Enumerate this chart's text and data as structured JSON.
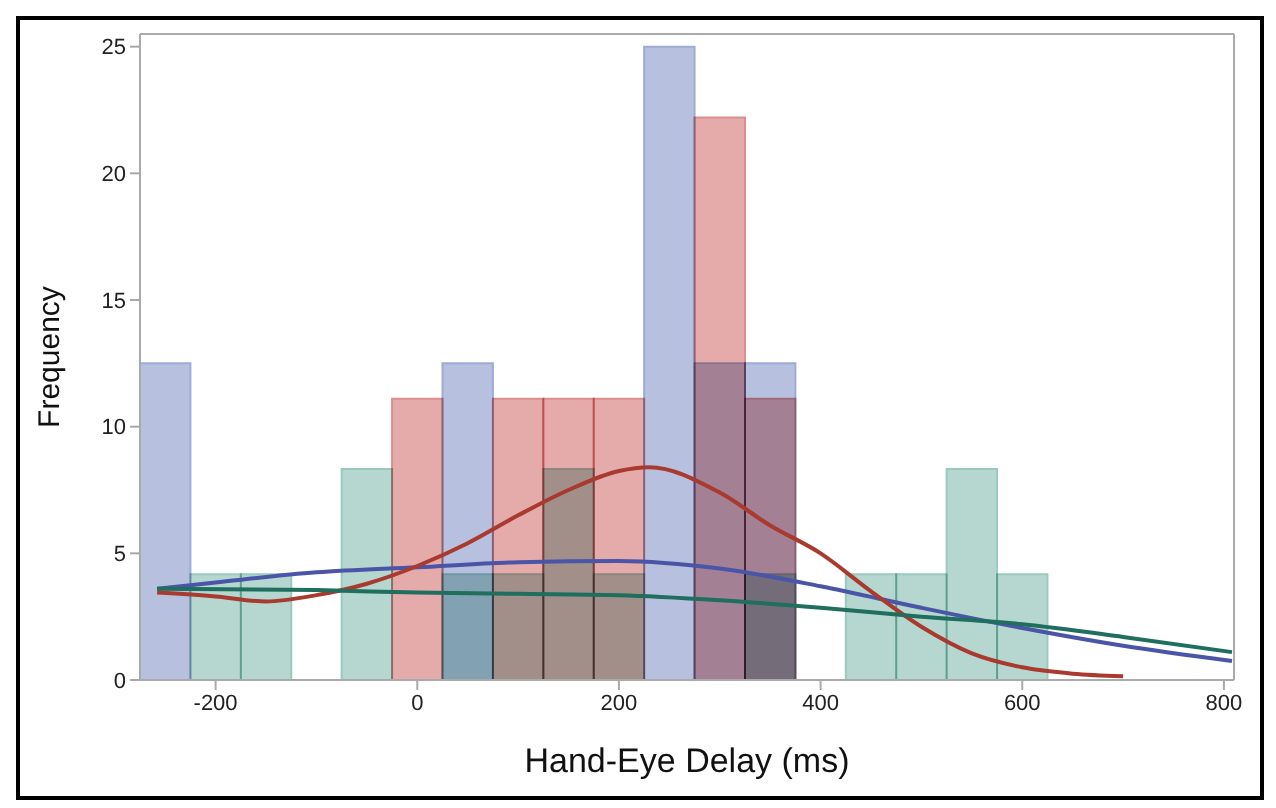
{
  "chart_data": {
    "type": "histogram",
    "xlabel": "Hand-Eye Delay (ms)",
    "ylabel": "Frequency",
    "bins": [
      -275,
      -225,
      -175,
      -125,
      -75,
      -25,
      25,
      75,
      125,
      175,
      225,
      275,
      325,
      375,
      425,
      475,
      525,
      575,
      625
    ],
    "xlim": [
      -275,
      810
    ],
    "xticks": [
      -200,
      0,
      200,
      400,
      600,
      800
    ],
    "ylim": [
      0,
      25.5
    ],
    "yticks": [
      0,
      5,
      10,
      15,
      20,
      25
    ],
    "grid": false,
    "series": [
      {
        "color": "#9fabd3",
        "values": [
          12.5,
          0,
          0,
          0,
          0,
          0,
          12.5,
          0,
          0,
          0,
          25,
          12.5,
          12.5,
          0,
          0,
          0,
          0,
          0
        ]
      },
      {
        "color": "#dc8e8e",
        "values": [
          0,
          0,
          0,
          0,
          0,
          11.1,
          0,
          11.1,
          11.1,
          11.1,
          0,
          22.2,
          11.1,
          0,
          0,
          0,
          0,
          0
        ]
      },
      {
        "color": "#9cc9bf",
        "values": [
          0,
          4.17,
          4.17,
          0,
          8.33,
          0,
          4.17,
          4.17,
          8.33,
          4.17,
          0,
          0,
          4.17,
          0,
          4.17,
          4.17,
          8.33,
          4.17
        ]
      },
      {
        "type": "line",
        "color": "#4a55a8",
        "x": [
          -258,
          -200,
          -100,
          0,
          100,
          200,
          300,
          400,
          500,
          600,
          700,
          808
        ],
        "values": [
          3.6,
          3.85,
          4.25,
          4.45,
          4.65,
          4.7,
          4.4,
          3.7,
          2.85,
          2.05,
          1.35,
          0.75
        ]
      },
      {
        "type": "line",
        "color": "#a83a30",
        "x": [
          -258,
          -200,
          -150,
          -100,
          -50,
          0,
          50,
          100,
          150,
          200,
          230,
          300,
          350,
          400,
          450,
          500,
          550,
          600,
          650,
          700
        ],
        "values": [
          3.45,
          3.3,
          3.1,
          3.35,
          3.8,
          4.5,
          5.4,
          6.5,
          7.5,
          8.25,
          8.4,
          7.4,
          6.1,
          5.0,
          3.5,
          2.1,
          1.05,
          0.5,
          0.25,
          0.15
        ]
      },
      {
        "type": "line",
        "color": "#1f6e5e",
        "x": [
          -258,
          -100,
          0,
          100,
          200,
          300,
          400,
          500,
          600,
          700,
          808
        ],
        "values": [
          3.6,
          3.55,
          3.45,
          3.4,
          3.35,
          3.15,
          2.85,
          2.5,
          2.2,
          1.7,
          1.1
        ]
      }
    ]
  }
}
